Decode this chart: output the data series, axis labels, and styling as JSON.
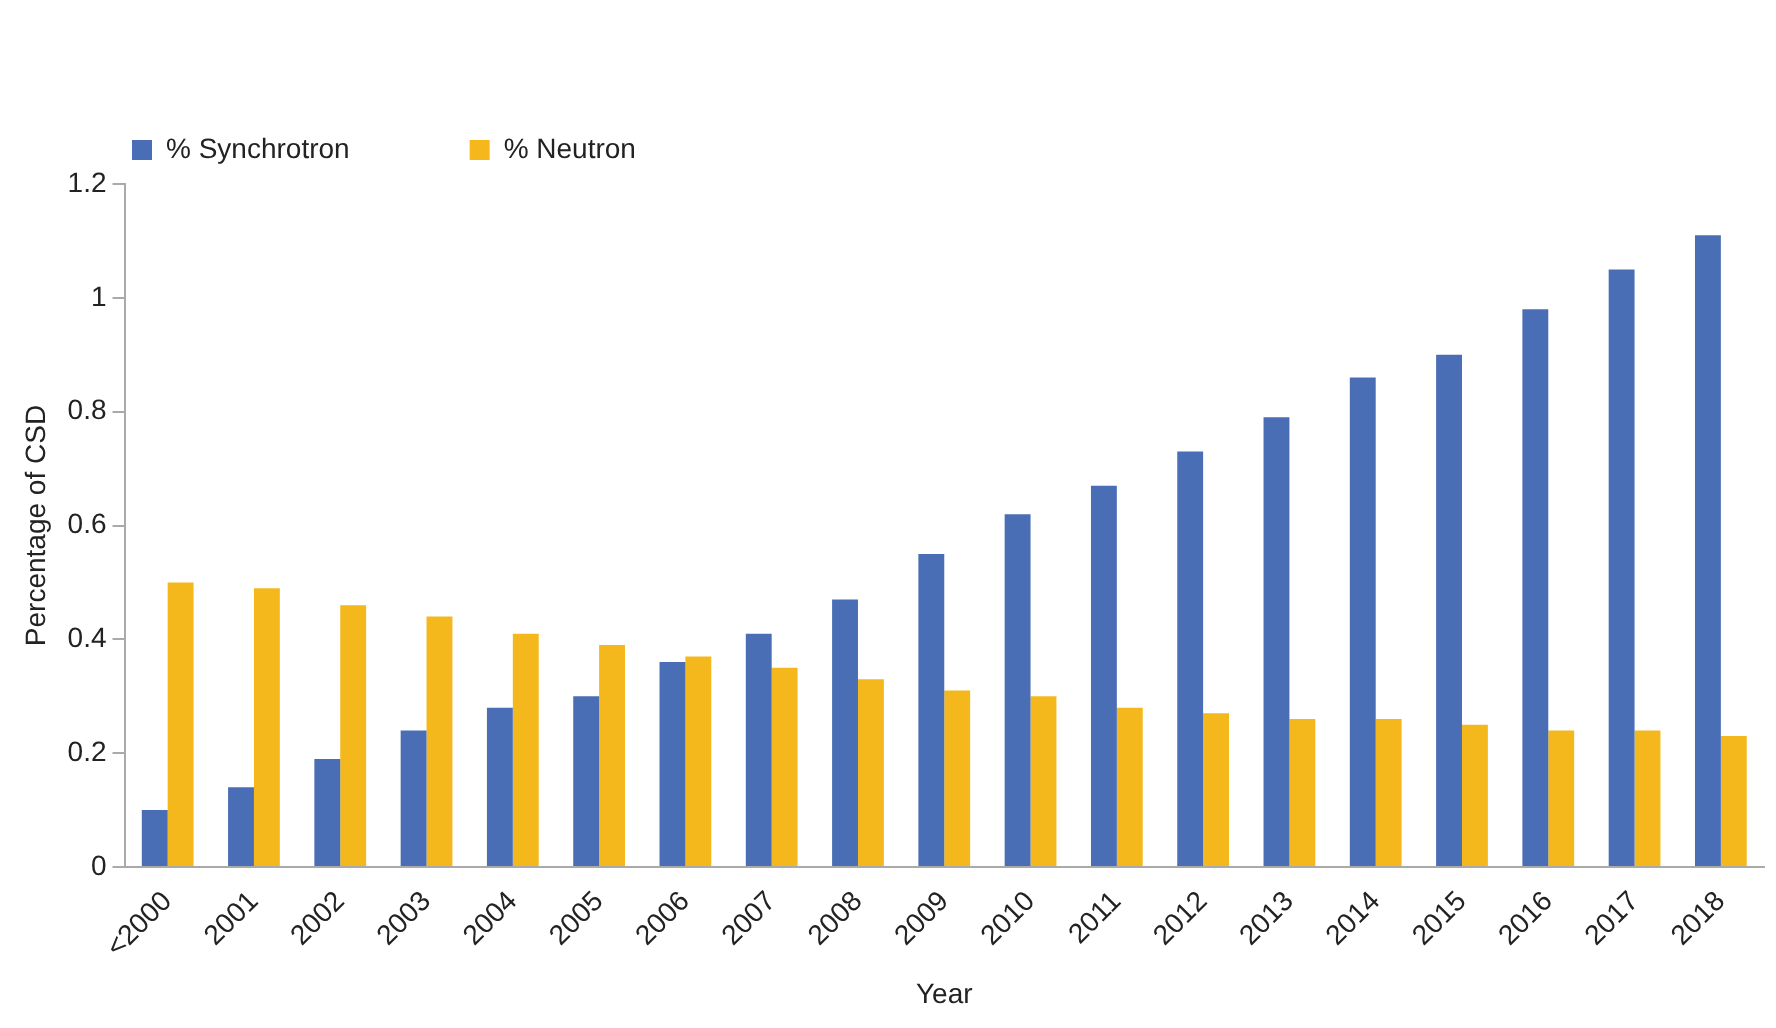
{
  "chart_data": {
    "type": "bar",
    "xlabel": "Year",
    "ylabel": "Percentage of CSD",
    "categories": [
      "<2000",
      "2001",
      "2002",
      "2003",
      "2004",
      "2005",
      "2006",
      "2007",
      "2008",
      "2009",
      "2010",
      "2011",
      "2012",
      "2013",
      "2014",
      "2015",
      "2016",
      "2017",
      "2018"
    ],
    "series": [
      {
        "name": "% Synchrotron",
        "color": "#4a6eb5",
        "values": [
          0.1,
          0.14,
          0.19,
          0.24,
          0.28,
          0.3,
          0.36,
          0.41,
          0.47,
          0.55,
          0.62,
          0.67,
          0.73,
          0.79,
          0.86,
          0.9,
          0.98,
          1.05,
          1.11
        ]
      },
      {
        "name": "% Neutron",
        "color": "#f4b81c",
        "values": [
          0.5,
          0.49,
          0.46,
          0.44,
          0.41,
          0.39,
          0.37,
          0.35,
          0.33,
          0.31,
          0.3,
          0.28,
          0.27,
          0.26,
          0.26,
          0.25,
          0.24,
          0.24,
          0.23
        ]
      }
    ],
    "ylim": [
      0,
      1.2
    ],
    "yticks": [
      0,
      0.2,
      0.4,
      0.6,
      0.8,
      1,
      1.2
    ],
    "grid": false,
    "legend": "top left"
  }
}
